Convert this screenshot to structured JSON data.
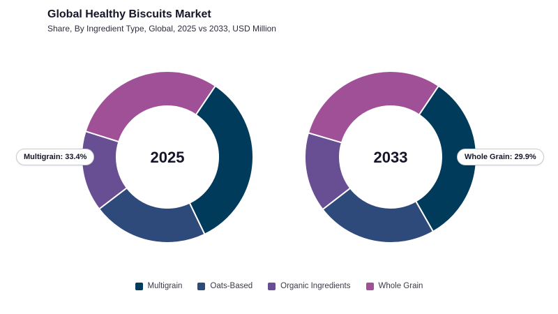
{
  "header": {
    "title": "Global Healthy Biscuits Market",
    "subtitle": "Share, By Ingredient Type, Global, 2025 vs 2033, USD Million"
  },
  "colors": {
    "Multigrain": "#003b5c",
    "Oats-Based": "#2e4a7b",
    "Organic Ingredients": "#684f93",
    "Whole Grain": "#a05096"
  },
  "chart_data": [
    {
      "type": "pie",
      "variant": "donut",
      "center_label": "2025",
      "categories": [
        "Multigrain",
        "Oats-Based",
        "Organic Ingredients",
        "Whole Grain"
      ],
      "values": [
        33.4,
        21.8,
        15.2,
        29.6
      ],
      "callout": "Multigrain: 33.4%",
      "legend": "bottom"
    },
    {
      "type": "pie",
      "variant": "donut",
      "center_label": "2033",
      "categories": [
        "Multigrain",
        "Oats-Based",
        "Organic Ingredients",
        "Whole Grain"
      ],
      "values": [
        32.3,
        22.8,
        15.0,
        29.9
      ],
      "callout": "Whole Grain: 29.9%",
      "legend": "bottom"
    }
  ],
  "legend": {
    "items": [
      "Multigrain",
      "Oats-Based",
      "Organic Ingredients",
      "Whole Grain"
    ]
  }
}
